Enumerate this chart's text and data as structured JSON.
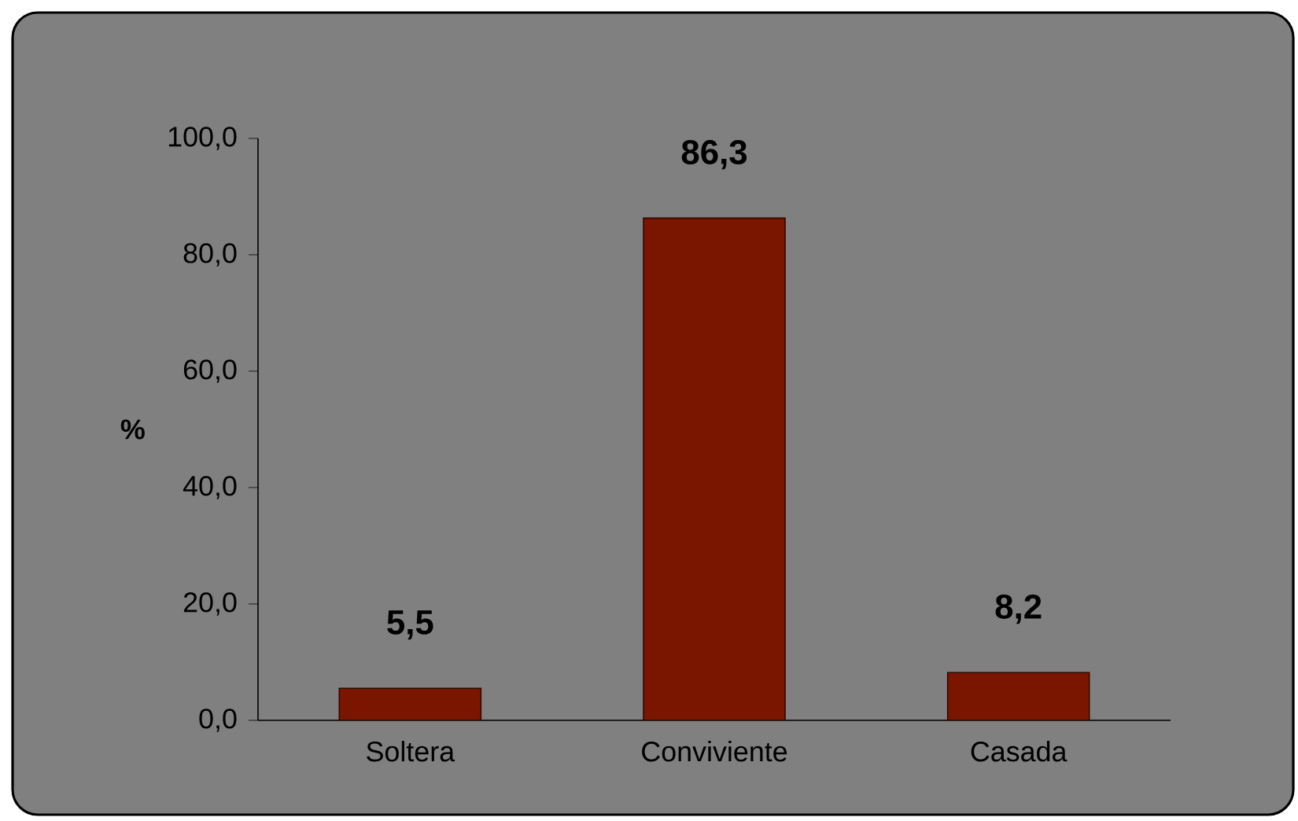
{
  "chart_data": {
    "type": "bar",
    "ylabel": "%",
    "categories": [
      "Soltera",
      "Conviviente",
      "Casada"
    ],
    "values": [
      5.5,
      86.3,
      8.2
    ],
    "value_labels": [
      "5,5",
      "86,3",
      "8,2"
    ],
    "color": "#7a1500",
    "ylim": [
      0,
      100
    ],
    "yticks": [
      {
        "value": 0,
        "label": "0,0"
      },
      {
        "value": 20,
        "label": "20,0"
      },
      {
        "value": 40,
        "label": "40,0"
      },
      {
        "value": 60,
        "label": "60,0"
      },
      {
        "value": 80,
        "label": "80,0"
      },
      {
        "value": 100,
        "label": "100,0"
      }
    ],
    "grid": false
  }
}
